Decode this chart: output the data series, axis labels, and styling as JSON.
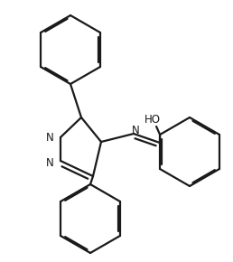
{
  "bg_color": "#ffffff",
  "line_color": "#1a1a1a",
  "line_width": 1.6,
  "dbo": 0.012,
  "fs": 8.5,
  "figsize": [
    2.58,
    2.9
  ],
  "dpi": 100,
  "xlim": [
    0,
    2.58
  ],
  "ylim": [
    0,
    2.9
  ]
}
